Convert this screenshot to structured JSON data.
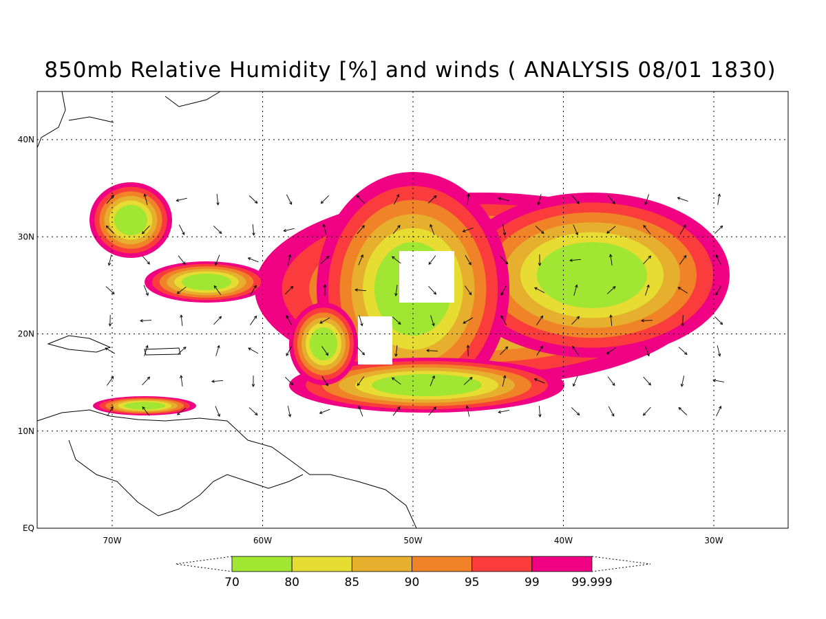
{
  "title": "850mb Relative Humidity [%] and winds ( ANALYSIS 08/01 1830)",
  "map": {
    "lat_labels": [
      "40N",
      "30N",
      "20N",
      "10N",
      "EQ"
    ],
    "lon_labels": [
      "70W",
      "60W",
      "50W",
      "40W",
      "30W"
    ]
  },
  "colorbar": {
    "labels": [
      "70",
      "80",
      "85",
      "90",
      "95",
      "99",
      "99.999"
    ],
    "colors": [
      "#a0e632",
      "#e6dc32",
      "#e6af2d",
      "#f08228",
      "#fa3c3c",
      "#f00082"
    ]
  }
}
